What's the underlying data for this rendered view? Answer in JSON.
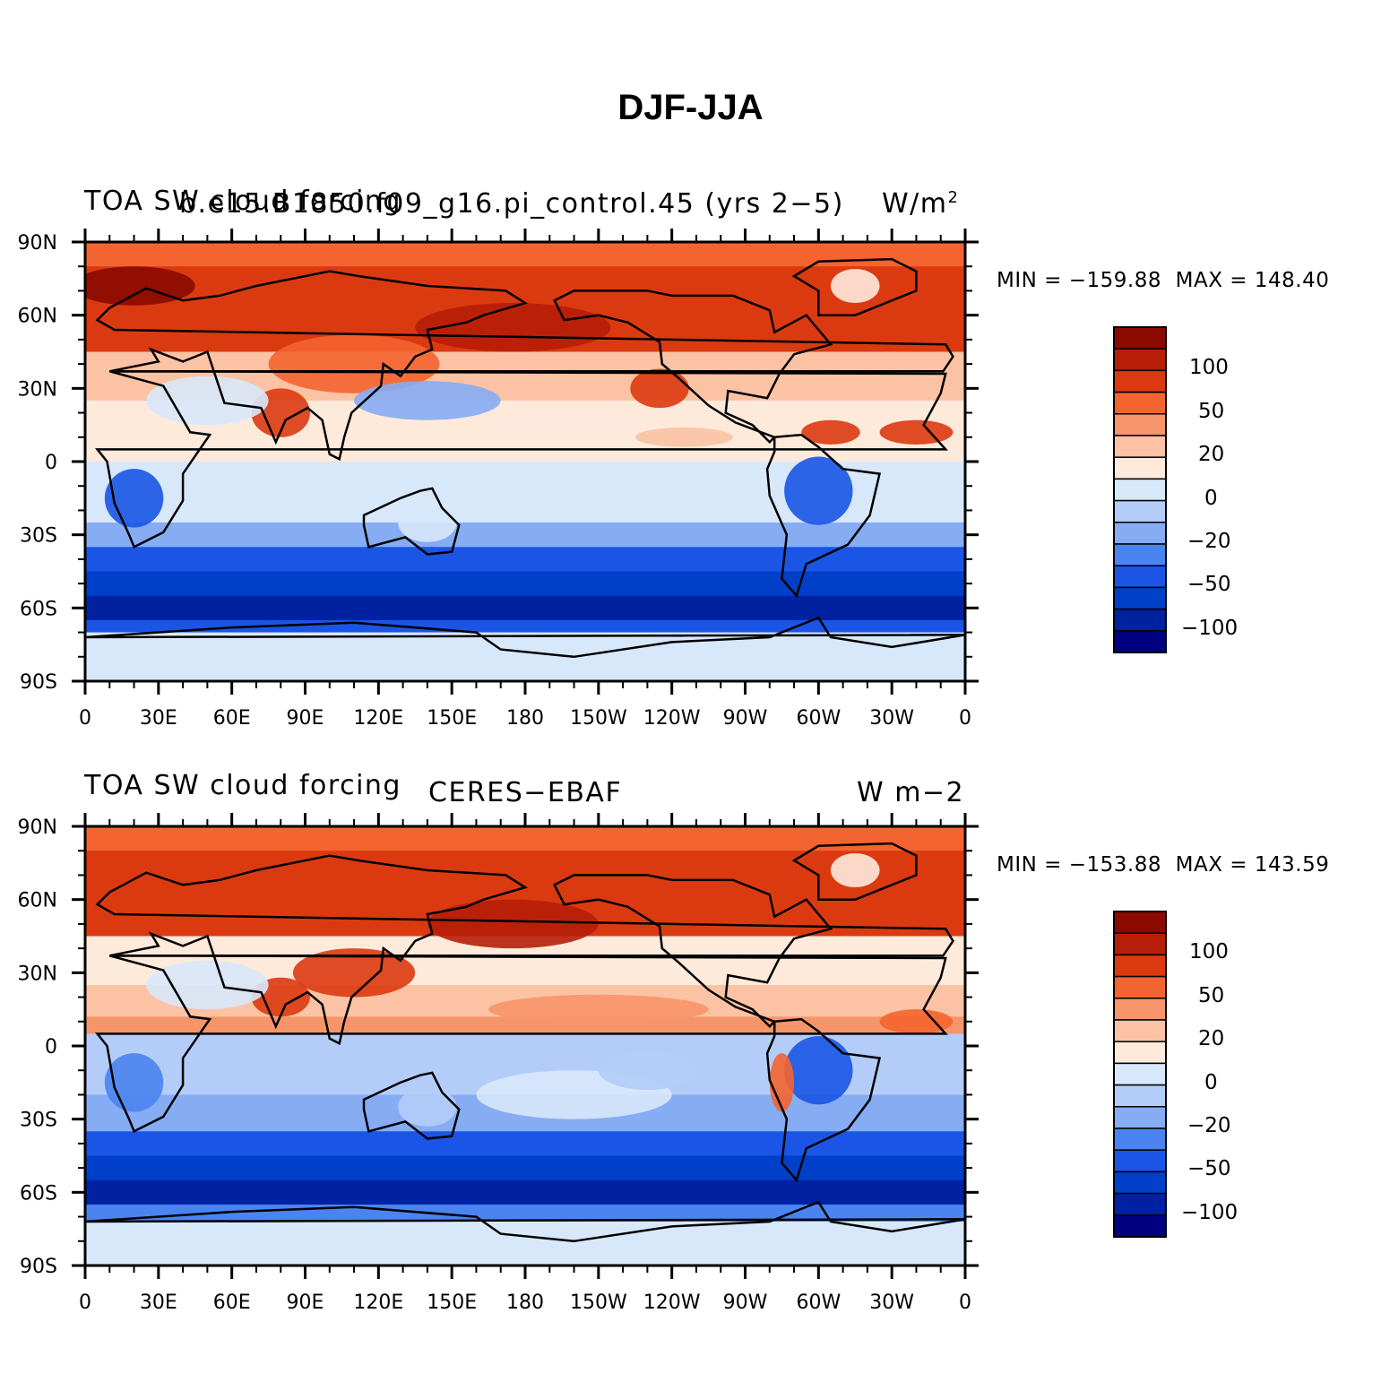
{
  "figure": {
    "title": "DJF-JJA"
  },
  "colors": {
    "palette": [
      "#000080",
      "#0022a0",
      "#0040c8",
      "#1a55e6",
      "#4a84f0",
      "#86acf4",
      "#b4cdf8",
      "#d8e8fb",
      "#feeadb",
      "#fbc3a4",
      "#f7956a",
      "#f46430",
      "#db3a10",
      "#b61e08",
      "#8a0a00"
    ],
    "land_outline": "#000000"
  },
  "panels": [
    {
      "id": "model",
      "left_title": "TOA SW cloud forcing",
      "center_title": "b.e15.B1850.f09_g16.pi_control.45 (yrs 2−5)",
      "right_title": "W/m²",
      "min_label": "MIN",
      "min_value": "−159.88",
      "max_label": "MAX",
      "max_value": "148.40",
      "units": "W/m2"
    },
    {
      "id": "observation",
      "left_title": "TOA SW cloud forcing",
      "center_title": "CERES−EBAF",
      "right_title": "W m−2",
      "min_label": "MIN",
      "min_value": "−153.88",
      "max_label": "MAX",
      "max_value": "143.59",
      "units": "W m-2"
    }
  ],
  "axes": {
    "lat_ticks": [
      "90N",
      "60N",
      "30N",
      "0",
      "30S",
      "60S",
      "90S"
    ],
    "lon_ticks": [
      "0",
      "30E",
      "60E",
      "90E",
      "120E",
      "150E",
      "180",
      "150W",
      "120W",
      "90W",
      "60W",
      "30W",
      "0"
    ]
  },
  "colorbar": {
    "labels": [
      "100",
      "50",
      "20",
      "0",
      "−20",
      "−50",
      "−100"
    ],
    "levels": [
      -140,
      -120,
      -100,
      -80,
      -60,
      -50,
      -40,
      -20,
      0,
      20,
      40,
      50,
      60,
      80,
      100,
      120,
      140
    ]
  }
}
